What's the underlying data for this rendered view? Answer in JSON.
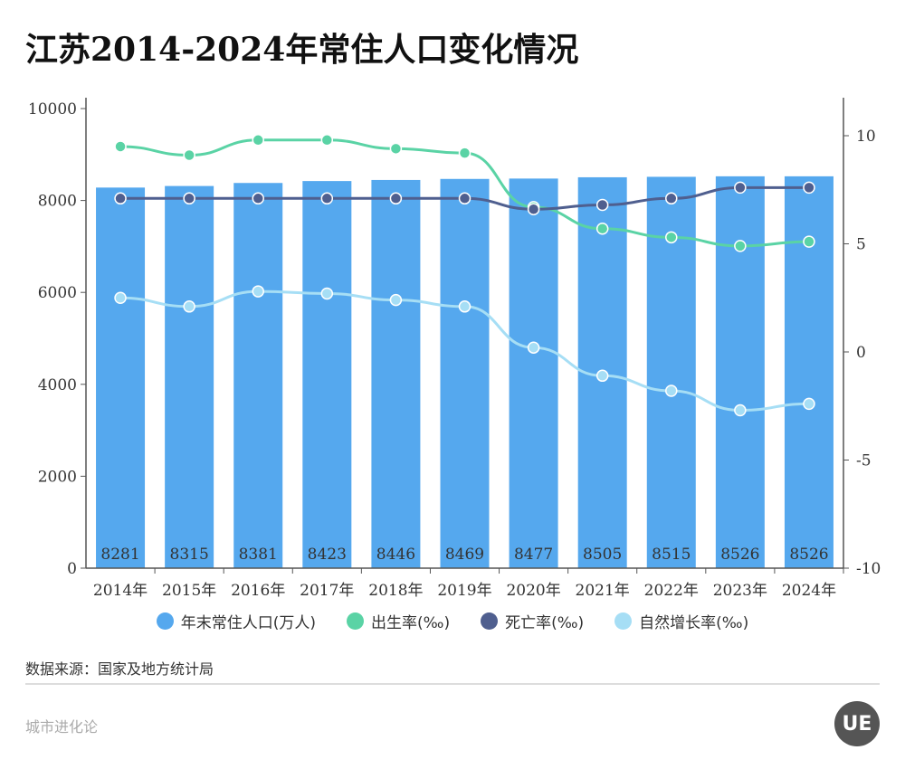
{
  "title": "江苏2014-2024年常住人口变化情况",
  "chart_data": {
    "type": "bar+line",
    "categories": [
      "2014年",
      "2015年",
      "2016年",
      "2017年",
      "2018年",
      "2019年",
      "2020年",
      "2021年",
      "2022年",
      "2023年",
      "2024年"
    ],
    "left_axis": {
      "ylim": [
        0,
        10000
      ],
      "ticks": [
        0,
        2000,
        4000,
        6000,
        8000,
        10000
      ]
    },
    "right_axis": {
      "ylim": [
        -10,
        12
      ],
      "ticks": [
        -10,
        -5,
        0,
        5,
        10
      ]
    },
    "series": [
      {
        "name": "年末常住人口(万人)",
        "type": "bar",
        "axis": "left",
        "color": "#55a8ee",
        "values": [
          8281,
          8315,
          8381,
          8423,
          8446,
          8469,
          8477,
          8505,
          8515,
          8526,
          8526
        ]
      },
      {
        "name": "出生率(‰)",
        "type": "line",
        "axis": "right",
        "color": "#5ad3a5",
        "values": [
          9.5,
          9.1,
          9.8,
          9.8,
          9.4,
          9.2,
          6.7,
          5.7,
          5.3,
          4.9,
          5.1
        ]
      },
      {
        "name": "死亡率(‰)",
        "type": "line",
        "axis": "right",
        "color": "#4f5f8f",
        "values": [
          7.1,
          7.1,
          7.1,
          7.1,
          7.1,
          7.1,
          6.6,
          6.8,
          7.1,
          7.6,
          7.6
        ]
      },
      {
        "name": "自然增长率(‰)",
        "type": "line",
        "axis": "right",
        "color": "#a6def5",
        "values": [
          2.5,
          2.1,
          2.8,
          2.7,
          2.4,
          2.1,
          0.2,
          -1.1,
          -1.8,
          -2.7,
          -2.4
        ]
      }
    ],
    "legend": "bottom",
    "grid": false
  },
  "source": "数据来源：国家及地方统计局",
  "brand": "城市进化论",
  "logo": "UE"
}
